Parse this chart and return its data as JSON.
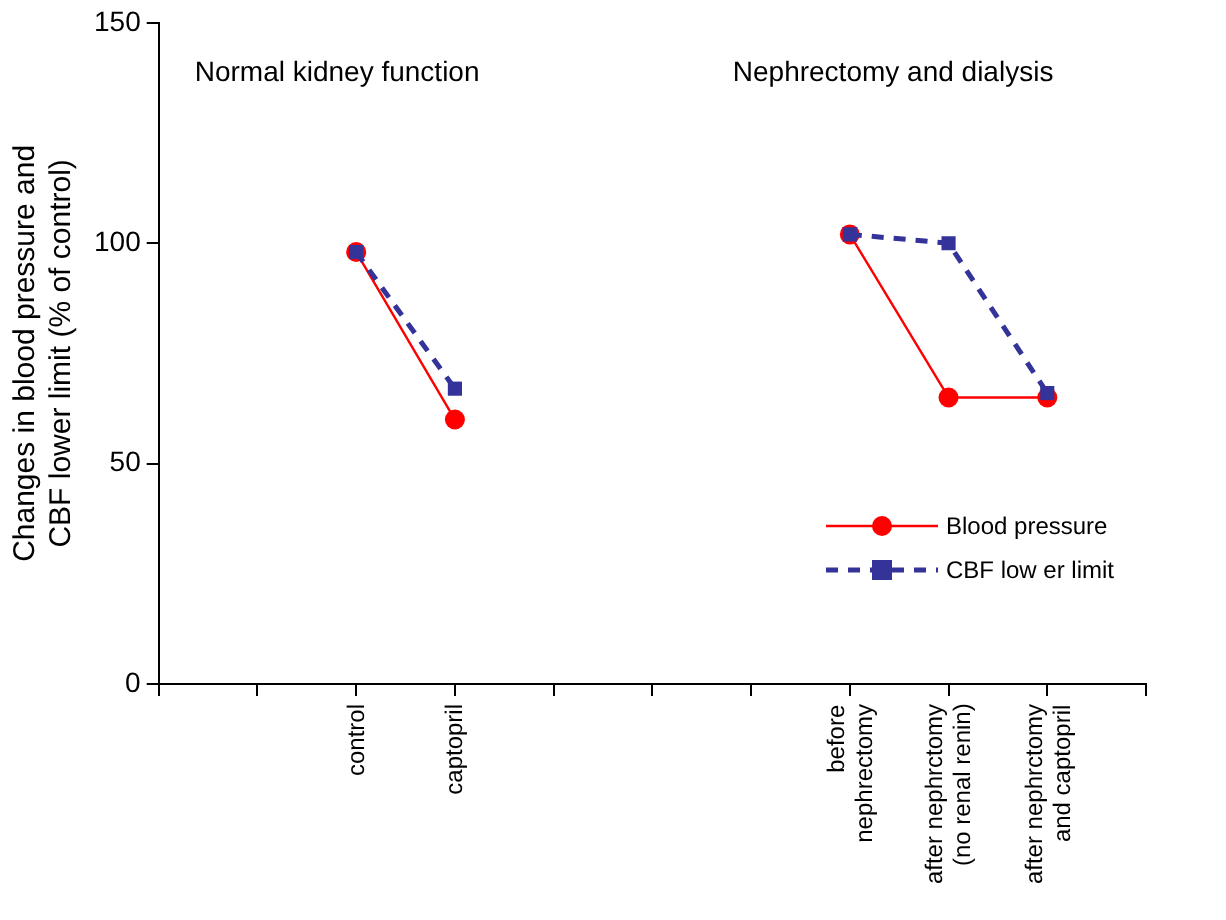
{
  "chart_data": {
    "type": "line",
    "ylabel": "Changes in blood pressure and CBF lower limit (% of control)",
    "annotations": [
      "Normal kidney function",
      "Nephrectomy and dialysis"
    ],
    "categories": [
      null,
      null,
      "control",
      "captopril",
      null,
      null,
      null,
      "before nephrectomy",
      "after nephrctomy (no renal renin)",
      "after nephrctomy and captopril",
      null
    ],
    "series": [
      {
        "name": "Blood pressure",
        "color": "#ff0000",
        "marker": "circle",
        "line_style": "solid",
        "values": [
          null,
          null,
          98,
          60,
          null,
          null,
          null,
          102,
          65,
          65,
          null
        ]
      },
      {
        "name": "CBF low er limit",
        "color": "#333399",
        "marker": "square",
        "line_style": "dashed",
        "values": [
          null,
          null,
          98,
          67,
          null,
          null,
          null,
          102,
          100,
          66,
          null
        ]
      }
    ],
    "ylim": [
      0,
      150
    ],
    "yticks": [
      0,
      50,
      100,
      150
    ],
    "grid": false,
    "legend": "bottom right"
  }
}
